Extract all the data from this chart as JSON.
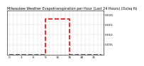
{
  "title": "Milwaukee Weather Evapotranspiration per Hour (Last 24 Hours) (Oz/sq ft)",
  "hours": [
    0,
    1,
    2,
    3,
    4,
    5,
    6,
    7,
    8,
    9,
    10,
    11,
    12,
    13,
    14,
    15,
    16,
    17,
    18,
    19,
    20,
    21,
    22,
    23
  ],
  "values": [
    0,
    0,
    0,
    0,
    0,
    0,
    0,
    0,
    0,
    0.018,
    0.018,
    0.018,
    0.018,
    0.018,
    0.018,
    0,
    0,
    0,
    0,
    0,
    0,
    0,
    0,
    0
  ],
  "line_color": "#ff0000",
  "line_style": "--",
  "line_width": 1.2,
  "grid_color": "#999999",
  "background_color": "#ffffff",
  "ylim": [
    0,
    0.022
  ],
  "xlim": [
    -0.5,
    23.5
  ],
  "ytick_values": [
    0.005,
    0.01,
    0.015,
    0.02
  ],
  "title_fontsize": 3.5,
  "tick_fontsize": 3.0
}
